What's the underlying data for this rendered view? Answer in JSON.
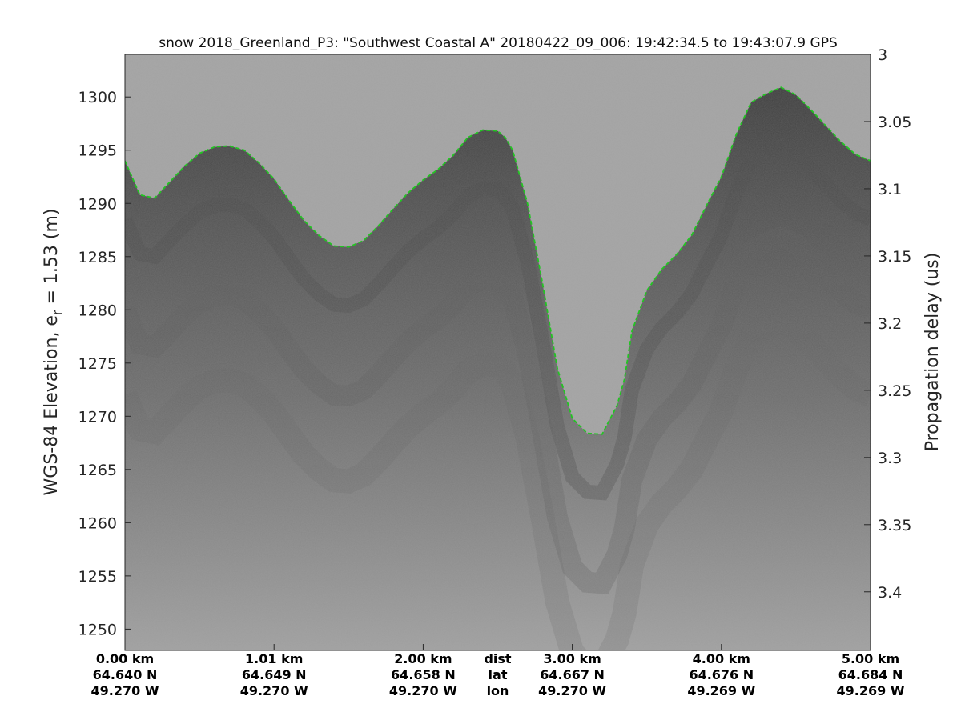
{
  "chart_data": {
    "type": "radar_echogram",
    "title": "snow 2018_Greenland_P3: \"Southwest Coastal A\"  20180422_09_006: 19:42:34.5 to 19:43:07.9 GPS",
    "ylabel_left": "WGS-84 Elevation, e",
    "ylabel_left_sub": "r",
    "ylabel_left_suffix": " = 1.53 (m)",
    "ylabel_right": "Propagation delay (us)",
    "xlim_km": [
      0,
      5.0
    ],
    "ylim_elevation_m": [
      1248,
      1304
    ],
    "left_ticks": [
      "1250",
      "1255",
      "1260",
      "1265",
      "1270",
      "1275",
      "1280",
      "1285",
      "1290",
      "1295",
      "1300"
    ],
    "left_tick_values": [
      1250,
      1255,
      1260,
      1265,
      1270,
      1275,
      1280,
      1285,
      1290,
      1295,
      1300
    ],
    "right_ticks": [
      "3",
      "3.05",
      "3.1",
      "3.15",
      "3.2",
      "3.25",
      "3.3",
      "3.35",
      "3.4"
    ],
    "right_tick_values": [
      3.0,
      3.05,
      3.1,
      3.15,
      3.2,
      3.25,
      3.3,
      3.35,
      3.4
    ],
    "right_ylim_us": [
      3.0,
      3.4436
    ],
    "surface_layer": {
      "name": "surface",
      "color": "#22c522",
      "x_km": [
        0.0,
        0.1,
        0.2,
        0.3,
        0.4,
        0.5,
        0.6,
        0.7,
        0.8,
        0.9,
        1.0,
        1.1,
        1.2,
        1.3,
        1.4,
        1.5,
        1.6,
        1.7,
        1.8,
        1.9,
        2.0,
        2.1,
        2.2,
        2.3,
        2.4,
        2.5,
        2.55,
        2.6,
        2.7,
        2.8,
        2.9,
        3.0,
        3.1,
        3.2,
        3.3,
        3.35,
        3.4,
        3.5,
        3.6,
        3.7,
        3.8,
        3.9,
        4.0,
        4.1,
        4.2,
        4.3,
        4.4,
        4.5,
        4.6,
        4.7,
        4.8,
        4.9,
        5.0
      ],
      "elevation_m": [
        1294.0,
        1290.8,
        1290.5,
        1292.0,
        1293.5,
        1294.7,
        1295.3,
        1295.4,
        1295.0,
        1293.8,
        1292.3,
        1290.3,
        1288.4,
        1287.0,
        1286.0,
        1285.9,
        1286.5,
        1287.9,
        1289.5,
        1291.0,
        1292.2,
        1293.2,
        1294.5,
        1296.2,
        1296.9,
        1296.8,
        1296.2,
        1295.0,
        1290.0,
        1282.5,
        1274.5,
        1269.8,
        1268.4,
        1268.3,
        1271.0,
        1273.5,
        1278.0,
        1281.8,
        1283.8,
        1285.2,
        1287.0,
        1289.8,
        1292.5,
        1296.5,
        1299.5,
        1300.3,
        1300.9,
        1300.2,
        1298.8,
        1297.3,
        1295.8,
        1294.6,
        1294.0
      ]
    },
    "bottom_rows": [
      {
        "label": "dist",
        "values": [
          "0.00 km",
          "1.01 km",
          "2.00 km",
          "3.00 km",
          "4.00 km",
          "5.00 km"
        ]
      },
      {
        "label": "lat",
        "values": [
          "64.640 N",
          "64.649 N",
          "64.658 N",
          "64.667 N",
          "64.676 N",
          "64.684 N"
        ]
      },
      {
        "label": "lon",
        "values": [
          "49.270 W",
          "49.270 W",
          "49.270 W",
          "49.270 W",
          "49.269 W",
          "49.269 W"
        ]
      }
    ],
    "bottom_positions_km": [
      0.0,
      1.0,
      2.0,
      3.0,
      4.0,
      5.0
    ],
    "colors": {
      "background": "#ffffff",
      "air": "#a2a2a2",
      "firn_dark": "#4c4c4c",
      "firn_light": "#8a8a8a",
      "axis": "#262626"
    }
  }
}
